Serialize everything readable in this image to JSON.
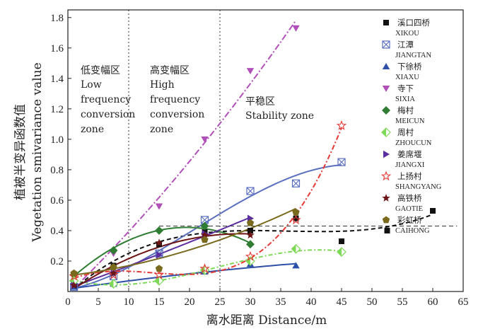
{
  "chart_data": {
    "type": "scatter",
    "xlabel": "离水距离 Distance/m",
    "ylabel_cn": "植被半变异函数值",
    "ylabel_en": "Vegetation smivariance value",
    "xlim": [
      0,
      65
    ],
    "ylim": [
      0,
      1.85
    ],
    "xticks": [
      0,
      5,
      10,
      15,
      20,
      25,
      30,
      35,
      40,
      45,
      50,
      55,
      60,
      65
    ],
    "yticks": [
      0.2,
      0.4,
      0.6,
      0.8,
      1.0,
      1.2,
      1.4,
      1.6,
      1.8
    ],
    "zone_lines": [
      10,
      25
    ],
    "sill_value": 0.43,
    "zones": [
      {
        "cn": "低变幅区",
        "en": [
          "Low",
          "frequency",
          "conversion",
          "zone"
        ]
      },
      {
        "cn": "高变幅区",
        "en": [
          "High",
          "frequency",
          "conversion",
          "zone"
        ]
      },
      {
        "cn": "平稳区",
        "en": [
          "Stability zone"
        ]
      }
    ],
    "series": [
      {
        "name_cn": "溪口四桥",
        "name_en": "XIKOU",
        "marker": "square",
        "color": "#111111",
        "points": [
          [
            1,
            0.04
          ],
          [
            7.5,
            0.17
          ],
          [
            15,
            0.31
          ],
          [
            22.5,
            0.39
          ],
          [
            30,
            0.4
          ],
          [
            37.5,
            0.48
          ],
          [
            45,
            0.33
          ],
          [
            52.5,
            0.4
          ],
          [
            60,
            0.53
          ]
        ]
      },
      {
        "name_cn": "江潭",
        "name_en": "JIANGTAN",
        "marker": "xbox",
        "color": "#5b6fbf",
        "points": [
          [
            1,
            0.03
          ],
          [
            7.5,
            0.1
          ],
          [
            15,
            0.25
          ],
          [
            22.5,
            0.47
          ],
          [
            30,
            0.66
          ],
          [
            37.5,
            0.71
          ],
          [
            45,
            0.85
          ]
        ]
      },
      {
        "name_cn": "下徐桥",
        "name_en": "XIAXU",
        "marker": "triangle-up",
        "color": "#2e4fa8",
        "points": [
          [
            1,
            0.03
          ],
          [
            7.5,
            0.05
          ],
          [
            15,
            0.08
          ],
          [
            22.5,
            0.13
          ],
          [
            30,
            0.18
          ],
          [
            37.5,
            0.17
          ]
        ]
      },
      {
        "name_cn": "寺下",
        "name_en": "SIXIA",
        "marker": "triangle-down",
        "color": "#b04fb8",
        "points": [
          [
            1,
            0.06
          ],
          [
            7.5,
            0.25
          ],
          [
            15,
            0.56
          ],
          [
            22.5,
            1.0
          ],
          [
            30,
            1.45
          ],
          [
            37.5,
            1.73
          ]
        ]
      },
      {
        "name_cn": "梅村",
        "name_en": "MEICUN",
        "marker": "diamond",
        "color": "#2e7d32",
        "points": [
          [
            1,
            0.11
          ],
          [
            7.5,
            0.27
          ],
          [
            15,
            0.4
          ],
          [
            22.5,
            0.43
          ],
          [
            30,
            0.31
          ]
        ]
      },
      {
        "name_cn": "周村",
        "name_en": "ZHOUCUN",
        "marker": "diamond-half",
        "color": "#7ed957",
        "points": [
          [
            1,
            0.07
          ],
          [
            7.5,
            0.05
          ],
          [
            15,
            0.07
          ],
          [
            22.5,
            0.14
          ],
          [
            30,
            0.2
          ],
          [
            37.5,
            0.28
          ],
          [
            45,
            0.26
          ]
        ]
      },
      {
        "name_cn": "姜席堰",
        "name_en": "JIANGXI",
        "marker": "triangle-right",
        "color": "#5b2d9e",
        "points": [
          [
            1,
            0.04
          ],
          [
            7.5,
            0.12
          ],
          [
            15,
            0.24
          ],
          [
            22.5,
            0.38
          ],
          [
            30,
            0.48
          ]
        ]
      },
      {
        "name_cn": "上扬村",
        "name_en": "SHANGYANG",
        "marker": "star-open",
        "color": "#e53935",
        "points": [
          [
            1,
            0.1
          ],
          [
            7.5,
            0.11
          ],
          [
            15,
            0.11
          ],
          [
            22.5,
            0.15
          ],
          [
            30,
            0.23
          ],
          [
            37.5,
            0.47
          ],
          [
            45,
            1.09
          ]
        ]
      },
      {
        "name_cn": "高铁桥",
        "name_en": "GAOTIE",
        "marker": "star",
        "color": "#6d1414",
        "points": [
          [
            1,
            0.04
          ],
          [
            7.5,
            0.12
          ],
          [
            15,
            0.32
          ],
          [
            22.5,
            0.37
          ],
          [
            30,
            0.37
          ]
        ]
      },
      {
        "name_cn": "彩虹桥",
        "name_en": "CAIHONG",
        "marker": "pentagon",
        "color": "#7a6a1e",
        "points": [
          [
            1,
            0.12
          ],
          [
            7.5,
            0.16
          ],
          [
            15,
            0.15
          ],
          [
            22.5,
            0.34
          ],
          [
            30,
            0.45
          ],
          [
            37.5,
            0.52
          ]
        ]
      }
    ]
  }
}
